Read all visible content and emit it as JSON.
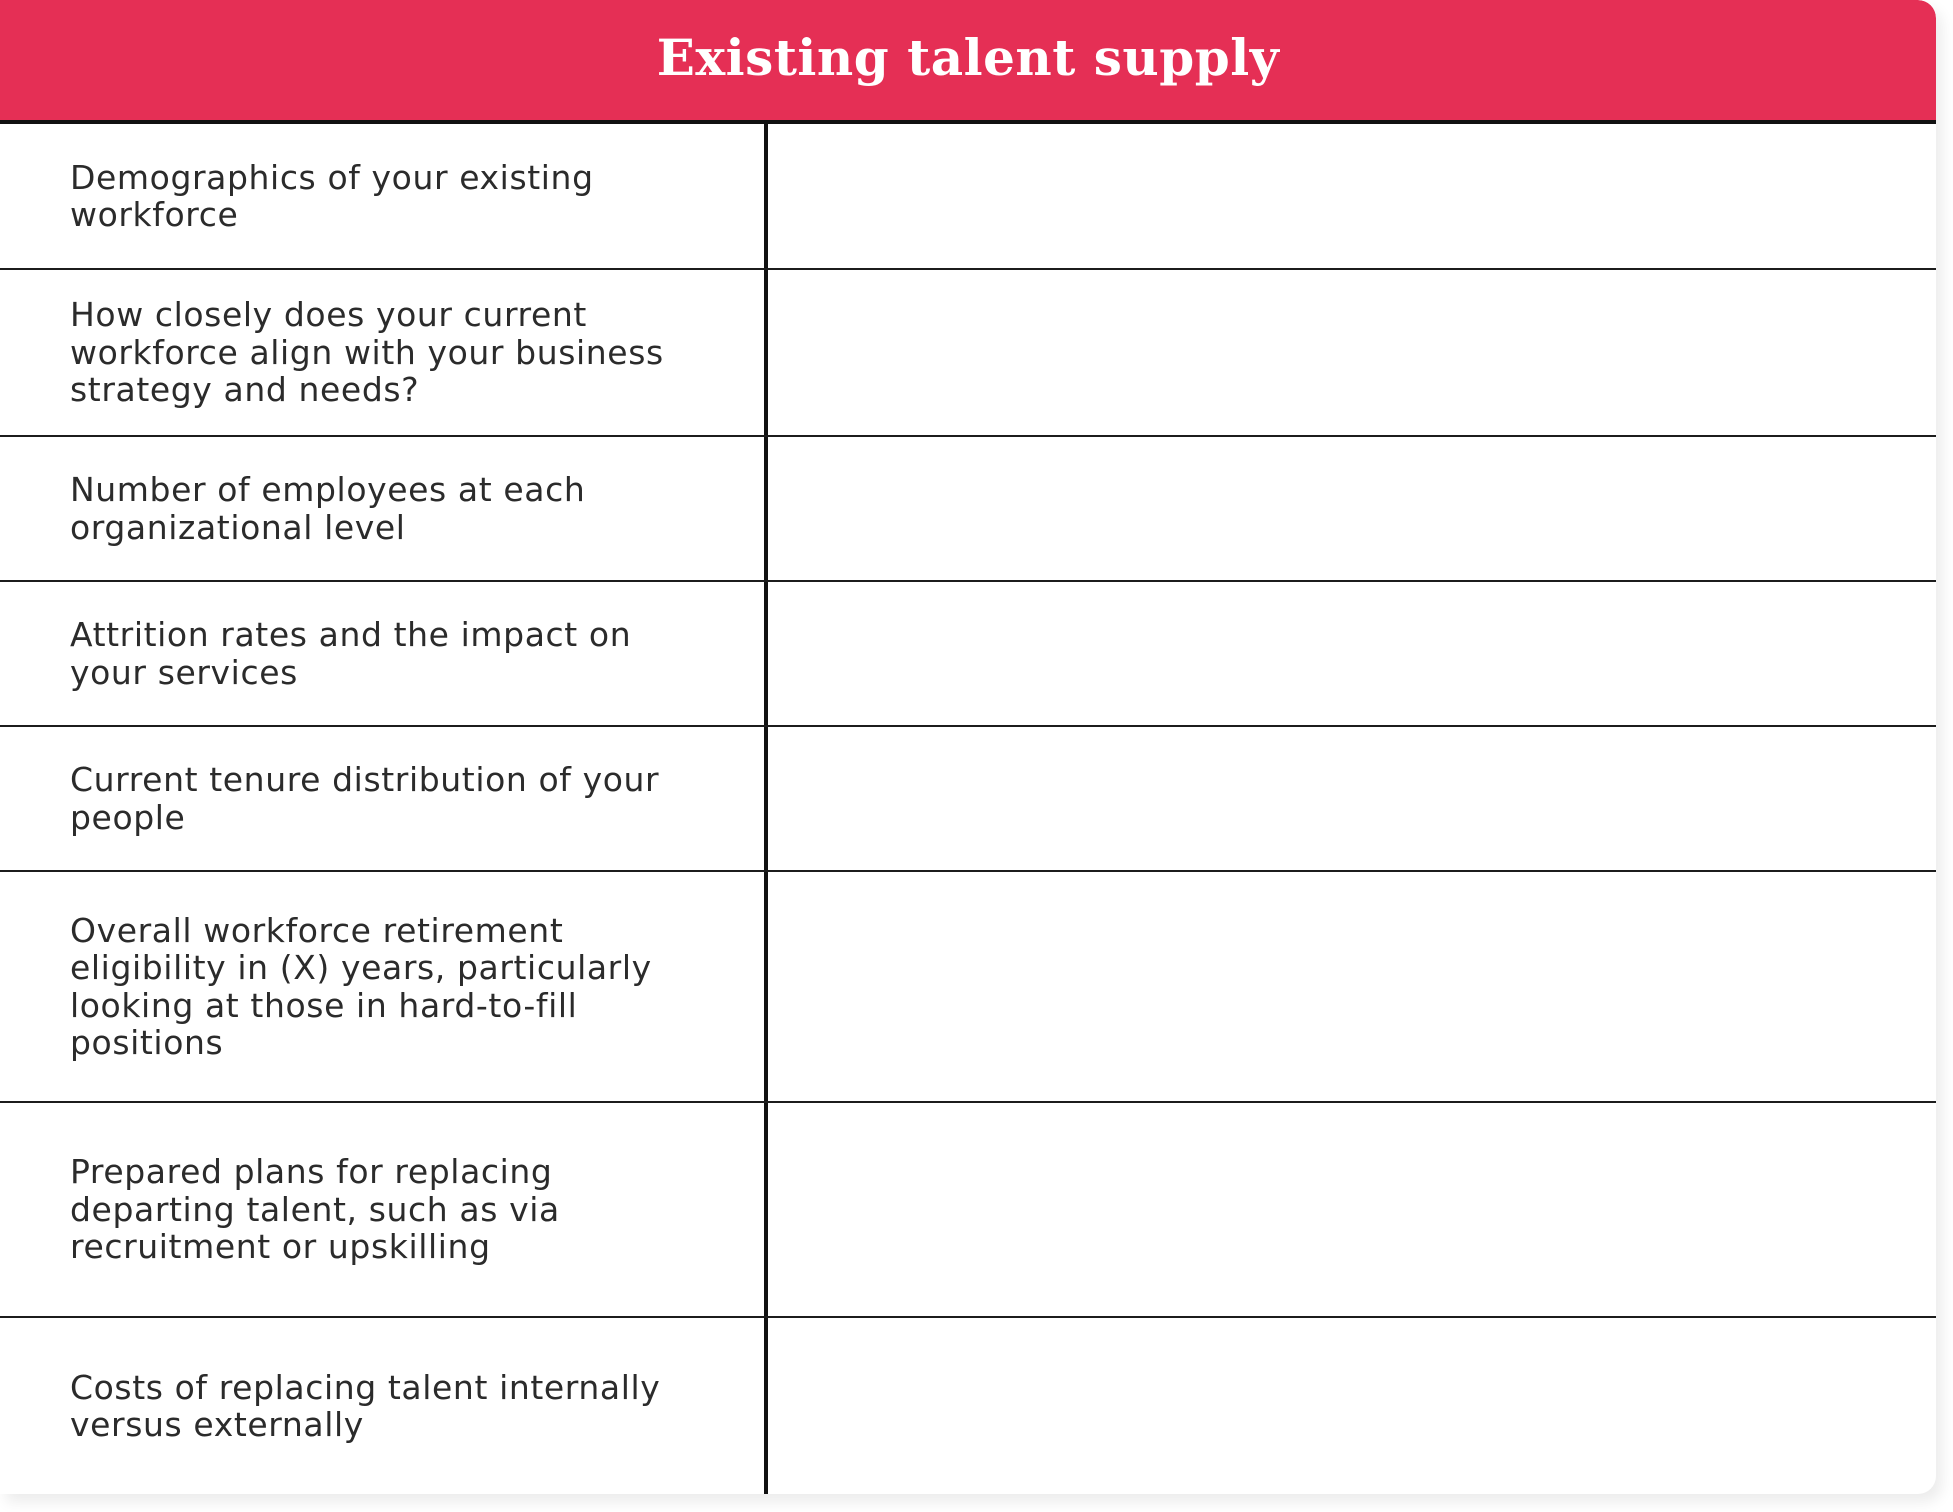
{
  "header": {
    "title": "Existing talent supply"
  },
  "rows": [
    {
      "label": "Demographics of your existing workforce",
      "value": ""
    },
    {
      "label": "How closely does your current workforce align with your business strategy and needs?",
      "value": ""
    },
    {
      "label": "Number of employees at each organizational level",
      "value": ""
    },
    {
      "label": "Attrition rates and the impact on your services",
      "value": ""
    },
    {
      "label": "Current tenure distribution of your people",
      "value": ""
    },
    {
      "label": "Overall workforce retirement eligibility in (X) years, particularly looking at those in hard-to-fill positions",
      "value": ""
    },
    {
      "label": "Prepared plans for replacing departing talent, such as via recruitment or upskilling",
      "value": ""
    },
    {
      "label": "Costs of replacing talent internally versus externally",
      "value": ""
    }
  ],
  "colors": {
    "header_background": "#e52f55",
    "header_text": "#ffffff",
    "body_text": "#2b2b2b",
    "rule": "#111111"
  }
}
